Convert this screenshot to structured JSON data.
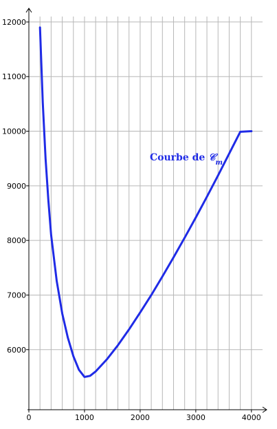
{
  "chart_data": {
    "type": "line",
    "title": "",
    "xlabel": "",
    "ylabel": "",
    "xlim": [
      0,
      4200
    ],
    "ylim": [
      4900,
      12100
    ],
    "x_ticks": [
      0,
      1000,
      2000,
      3000,
      4000
    ],
    "y_ticks": [
      6000,
      7000,
      8000,
      9000,
      10000,
      11000,
      12000
    ],
    "x_tick_labels": [
      "0",
      "1000",
      "2000",
      "3000",
      "4000"
    ],
    "y_tick_labels": [
      "6000",
      "7000",
      "8000",
      "9000",
      "10000",
      "11000",
      "12000"
    ],
    "grid": true,
    "colors": {
      "curve": "#1f2be6",
      "grid": "#b7b7b7",
      "axis": "#000000"
    },
    "series": [
      {
        "label_main": "Courbe de ",
        "label_math": "𝒞",
        "label_sub": "m",
        "x": [
          200,
          250,
          300,
          350,
          400,
          500,
          600,
          700,
          800,
          900,
          1000,
          1100,
          1200,
          1400,
          1600,
          1800,
          2000,
          2200,
          2400,
          2600,
          2800,
          3000,
          3200,
          3400,
          3600,
          3800,
          4000
        ],
        "y": [
          11900,
          10520,
          9500,
          8740,
          8100,
          7260,
          6660,
          6220,
          5880,
          5630,
          5500,
          5520,
          5600,
          5820,
          6080,
          6370,
          6680,
          7000,
          7340,
          7690,
          8050,
          8420,
          8800,
          9190,
          9590,
          9990,
          10000
        ]
      }
    ]
  }
}
